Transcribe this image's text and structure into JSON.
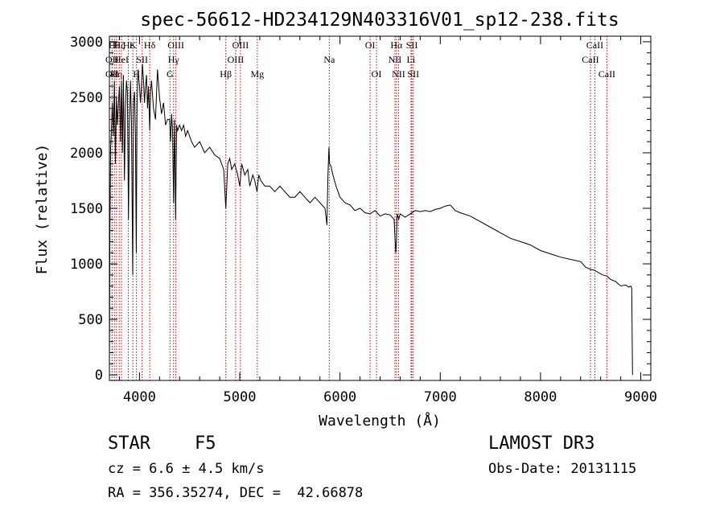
{
  "chart_data": {
    "type": "line",
    "title": "spec-56612-HD234129N403316V01_sp12-238.fits",
    "xlabel": "Wavelength (Å)",
    "ylabel": "Flux (relative)",
    "xlim": [
      3700,
      9100
    ],
    "ylim": [
      -50,
      3050
    ],
    "xticks": [
      4000,
      5000,
      6000,
      7000,
      8000,
      9000
    ],
    "xtick_labels": [
      "4000",
      "5000",
      "6000",
      "7000",
      "8000",
      "9000"
    ],
    "yticks": [
      0,
      500,
      1000,
      1500,
      2000,
      2500,
      3000
    ],
    "ytick_labels": [
      "0",
      "500",
      "1000",
      "1500",
      "2000",
      "2500",
      "3000"
    ],
    "grid": false,
    "line_color": "#000000",
    "marker_color": "#cc0000",
    "series": [
      {
        "name": "spectrum",
        "x": [
          3700,
          3705,
          3712,
          3720,
          3730,
          3740,
          3750,
          3760,
          3770,
          3780,
          3790,
          3800,
          3810,
          3820,
          3830,
          3840,
          3850,
          3860,
          3870,
          3880,
          3890,
          3900,
          3910,
          3920,
          3933,
          3940,
          3950,
          3960,
          3968,
          3975,
          3985,
          4000,
          4010,
          4020,
          4030,
          4040,
          4050,
          4060,
          4070,
          4080,
          4090,
          4102,
          4110,
          4120,
          4140,
          4160,
          4180,
          4200,
          4220,
          4240,
          4260,
          4280,
          4300,
          4310,
          4320,
          4330,
          4340,
          4350,
          4360,
          4370,
          4380,
          4400,
          4420,
          4440,
          4460,
          4480,
          4500,
          4520,
          4550,
          4600,
          4650,
          4700,
          4750,
          4800,
          4840,
          4861,
          4880,
          4900,
          4920,
          4950,
          4980,
          5000,
          5020,
          5050,
          5080,
          5100,
          5130,
          5150,
          5172,
          5190,
          5210,
          5250,
          5300,
          5350,
          5400,
          5450,
          5500,
          5550,
          5600,
          5650,
          5700,
          5750,
          5800,
          5850,
          5870,
          5880,
          5890,
          5896,
          5910,
          5930,
          5960,
          6000,
          6050,
          6100,
          6150,
          6200,
          6250,
          6300,
          6350,
          6400,
          6450,
          6500,
          6540,
          6556,
          6563,
          6570,
          6585,
          6600,
          6650,
          6700,
          6750,
          6800,
          6850,
          6900,
          6950,
          7000,
          7050,
          7100,
          7150,
          7200,
          7300,
          7400,
          7500,
          7600,
          7700,
          7800,
          7900,
          8000,
          8100,
          8200,
          8300,
          8400,
          8450,
          8500,
          8542,
          8580,
          8620,
          8662,
          8700,
          8750,
          8800,
          8850,
          8880,
          8900,
          8910,
          8918
        ],
        "y": [
          0,
          1250,
          2050,
          2200,
          2450,
          2150,
          2650,
          1900,
          2500,
          2250,
          2450,
          2600,
          2100,
          2650,
          2000,
          2700,
          1750,
          2400,
          2650,
          2550,
          1400,
          2250,
          2650,
          2300,
          900,
          2450,
          2550,
          2150,
          1100,
          2400,
          2750,
          2600,
          2450,
          2600,
          2800,
          2650,
          2450,
          2600,
          2700,
          2400,
          2600,
          2200,
          2550,
          2650,
          2400,
          2300,
          2750,
          2500,
          2350,
          2450,
          2250,
          2300,
          2300,
          2100,
          2350,
          2200,
          1550,
          2300,
          1400,
          2250,
          2200,
          2250,
          2200,
          2250,
          2150,
          2200,
          2150,
          2100,
          2050,
          2100,
          2000,
          2050,
          1980,
          1950,
          1850,
          1500,
          1900,
          1950,
          1850,
          1900,
          1800,
          1700,
          1900,
          1800,
          1850,
          1700,
          1800,
          1750,
          1650,
          1800,
          1750,
          1700,
          1700,
          1650,
          1700,
          1650,
          1600,
          1600,
          1650,
          1600,
          1550,
          1600,
          1550,
          1500,
          1350,
          1800,
          2050,
          1900,
          1880,
          1800,
          1700,
          1600,
          1550,
          1530,
          1480,
          1500,
          1460,
          1450,
          1480,
          1430,
          1450,
          1440,
          1400,
          1100,
          1200,
          1450,
          1400,
          1450,
          1420,
          1450,
          1480,
          1470,
          1480,
          1470,
          1490,
          1500,
          1520,
          1530,
          1480,
          1460,
          1430,
          1380,
          1330,
          1280,
          1230,
          1200,
          1170,
          1120,
          1090,
          1060,
          1040,
          1020,
          970,
          950,
          940,
          920,
          900,
          890,
          860,
          840,
          800,
          810,
          790,
          800,
          780,
          0
        ]
      }
    ],
    "line_markers": [
      {
        "w": 3727,
        "label": "OII",
        "row": 1
      },
      {
        "w": 3727,
        "label": "OII",
        "row": 2
      },
      {
        "w": 3750,
        "label": "Hθ",
        "row": 0
      },
      {
        "w": 3771,
        "label": "Hη",
        "row": 2
      },
      {
        "w": 3798,
        "label": "Hζ",
        "row": 0
      },
      {
        "w": 3820,
        "label": "HeI",
        "row": 1
      },
      {
        "w": 3889,
        "label": "Hε",
        "row": 0
      },
      {
        "w": 3934,
        "label": "K",
        "row": 0
      },
      {
        "w": 3970,
        "label": "H",
        "row": 2
      },
      {
        "w": 4026,
        "label": "SII",
        "row": 1
      },
      {
        "w": 4102,
        "label": "Hδ",
        "row": 0
      },
      {
        "w": 4304,
        "label": "G",
        "row": 2
      },
      {
        "w": 4340,
        "label": "Hγ",
        "row": 1
      },
      {
        "w": 4363,
        "label": "OIII",
        "row": 0
      },
      {
        "w": 4861,
        "label": "Hβ",
        "row": 2
      },
      {
        "w": 4959,
        "label": "OIII",
        "row": 1
      },
      {
        "w": 5007,
        "label": "OIII",
        "row": 0
      },
      {
        "w": 5175,
        "label": "Mg",
        "row": 2
      },
      {
        "w": 5893,
        "label": "Na",
        "row": 1
      },
      {
        "w": 6300,
        "label": "OI",
        "row": 0
      },
      {
        "w": 6364,
        "label": "OI",
        "row": 2
      },
      {
        "w": 6548,
        "label": "NII",
        "row": 1
      },
      {
        "w": 6563,
        "label": "Hα",
        "row": 0
      },
      {
        "w": 6584,
        "label": "NII",
        "row": 2
      },
      {
        "w": 6708,
        "label": "Li",
        "row": 1
      },
      {
        "w": 6717,
        "label": "SII",
        "row": 0
      },
      {
        "w": 6731,
        "label": "SII",
        "row": 2
      },
      {
        "w": 8498,
        "label": "CaII",
        "row": 1
      },
      {
        "w": 8542,
        "label": "CaII",
        "row": 0
      },
      {
        "w": 8662,
        "label": "CaII",
        "row": 2
      }
    ]
  },
  "info": {
    "object_class": "STAR",
    "subclass": "F5",
    "survey": "LAMOST DR3",
    "redshift": "cz = 6.6 ± 4.5 km/s",
    "obs_date": "Obs-Date: 20131115",
    "coords": "RA = 356.35274, DEC =  42.66878"
  }
}
